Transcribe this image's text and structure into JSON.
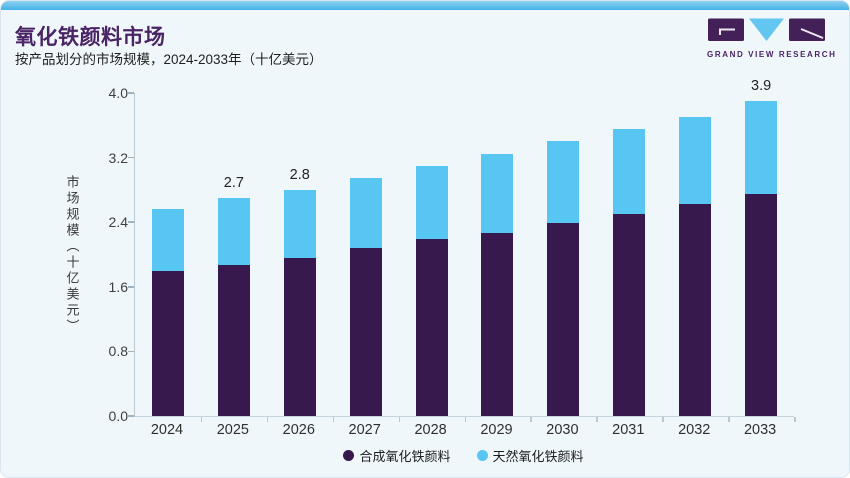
{
  "header": {
    "title": "氧化铁颜料市场",
    "subtitle": "按产品划分的市场规模，2024-2033年（十亿美元）"
  },
  "logo": {
    "brand": "GRAND VIEW RESEARCH",
    "purple": "#432058",
    "blue": "#62c7f0"
  },
  "chart_data": {
    "type": "bar",
    "stacked": true,
    "title": "氧化铁颜料市场",
    "subtitle": "按产品划分的市场规模，2024-2033年（十亿美元）",
    "categories": [
      "2024",
      "2025",
      "2026",
      "2027",
      "2028",
      "2029",
      "2030",
      "2031",
      "2032",
      "2033"
    ],
    "series": [
      {
        "name": "合成氧化铁颜料",
        "color": "#38194d",
        "values": [
          1.79,
          1.87,
          1.96,
          2.08,
          2.19,
          2.27,
          2.39,
          2.5,
          2.62,
          2.75
        ]
      },
      {
        "name": "天然氧化铁颜料",
        "color": "#57c6f3",
        "values": [
          0.77,
          0.83,
          0.84,
          0.87,
          0.91,
          0.97,
          1.01,
          1.05,
          1.08,
          1.15
        ]
      }
    ],
    "totals": [
      2.56,
      2.7,
      2.8,
      2.95,
      3.1,
      3.24,
      3.4,
      3.55,
      3.7,
      3.9
    ],
    "total_labels": [
      "",
      "2.7",
      "2.8",
      "",
      "",
      "",
      "",
      "",
      "",
      "3.9"
    ],
    "ylabel": "市场规模（十亿美元）",
    "yticks": [
      0.0,
      0.8,
      1.6,
      2.4,
      3.2,
      4.0
    ],
    "ylim": [
      0,
      4.0
    ],
    "grid": false,
    "legend_position": "bottom"
  }
}
